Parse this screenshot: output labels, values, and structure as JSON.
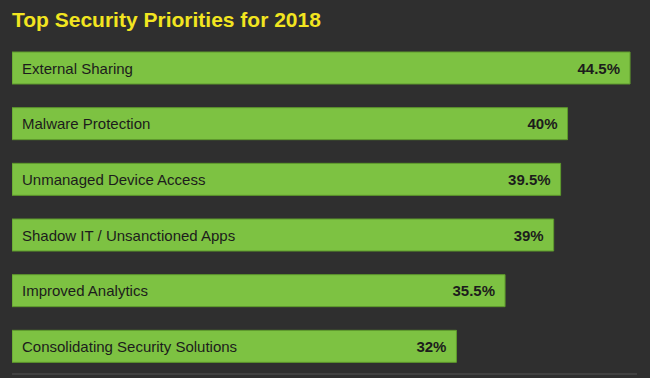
{
  "chart_data": {
    "type": "bar",
    "title": "Top Security Priorities for 2018",
    "orientation": "horizontal",
    "categories": [
      "External Sharing",
      "Malware Protection",
      "Unmanaged Device Access",
      "Shadow IT / Unsanctioned Apps",
      "Improved Analytics",
      "Consolidating Security Solutions"
    ],
    "values": [
      44.5,
      40,
      39.5,
      39,
      35.5,
      32
    ],
    "value_labels": [
      "44.5%",
      "40%",
      "39.5%",
      "39%",
      "35.5%",
      "32%"
    ],
    "data_labels": true,
    "tick_labels": false,
    "xlim": [
      0,
      45
    ],
    "color": "#7dc242"
  }
}
